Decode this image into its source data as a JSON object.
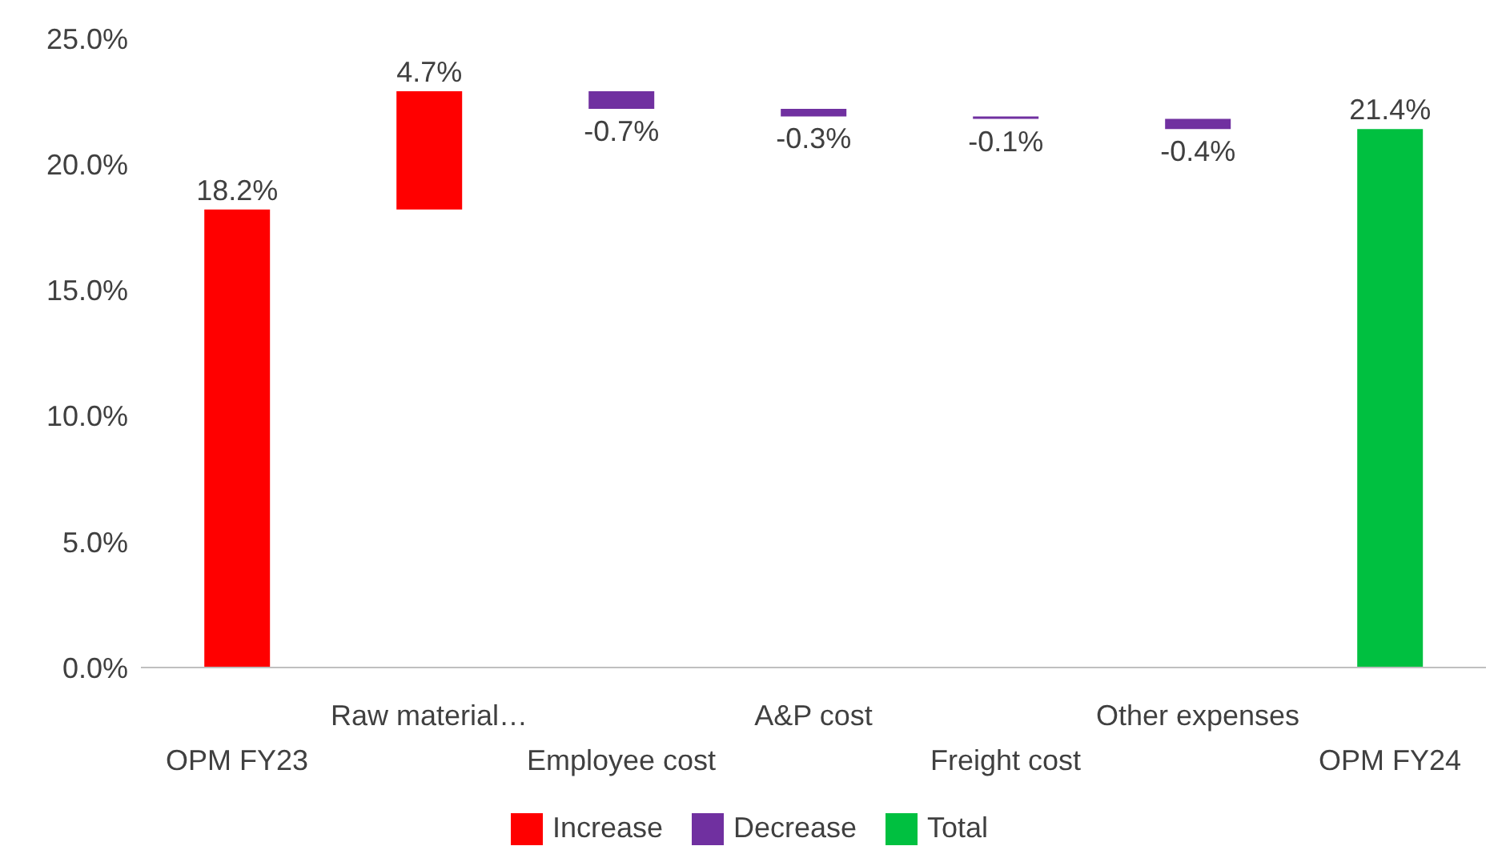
{
  "chart_data": {
    "type": "bar",
    "categories": [
      "OPM FY23",
      "Raw material…",
      "Employee cost",
      "A&P cost",
      "Freight cost",
      "Other expenses",
      "OPM FY24"
    ],
    "series": [
      {
        "name": "Increase",
        "color": "#ff0000",
        "values": [
          18.2,
          4.7,
          null,
          null,
          null,
          null,
          null
        ],
        "base": [
          0,
          18.2,
          null,
          null,
          null,
          null,
          null
        ]
      },
      {
        "name": "Decrease",
        "color": "#7030a0",
        "values": [
          null,
          null,
          -0.7,
          -0.3,
          -0.1,
          -0.4,
          null
        ],
        "base": [
          null,
          null,
          22.9,
          22.2,
          21.9,
          21.8,
          null
        ]
      },
      {
        "name": "Total",
        "color": "#00c040",
        "values": [
          null,
          null,
          null,
          null,
          null,
          null,
          21.4
        ],
        "base": [
          null,
          null,
          null,
          null,
          null,
          null,
          0
        ]
      }
    ],
    "value_labels": [
      "18.2%",
      "4.7%",
      "-0.7%",
      "-0.3%",
      "-0.1%",
      "-0.4%",
      "21.4%"
    ],
    "ylim": [
      0,
      25
    ],
    "yticks": [
      {
        "value": 0,
        "label": "0.0%"
      },
      {
        "value": 5,
        "label": "5.0%"
      },
      {
        "value": 10,
        "label": "10.0%"
      },
      {
        "value": 15,
        "label": "15.0%"
      },
      {
        "value": 20,
        "label": "20.0%"
      },
      {
        "value": 25,
        "label": "25.0%"
      }
    ],
    "grid": false,
    "legend": "bottom"
  }
}
